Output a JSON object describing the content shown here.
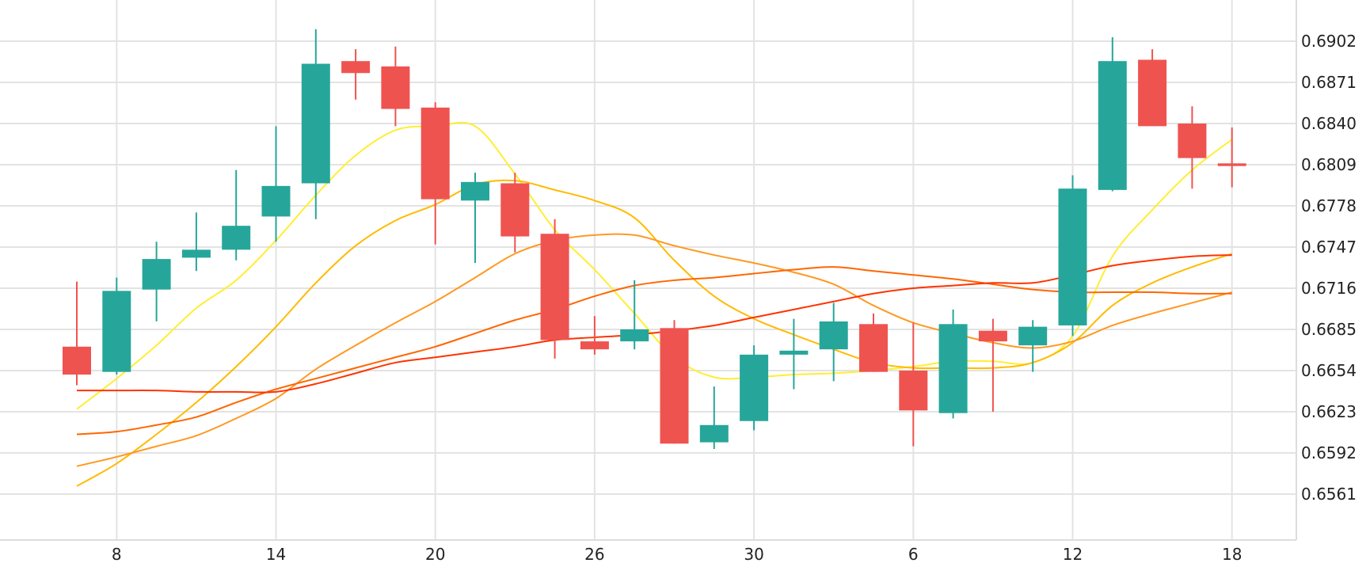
{
  "chart_data": {
    "type": "candlestick",
    "x_ticks": [
      {
        "label": "8",
        "index": 1
      },
      {
        "label": "14",
        "index": 5
      },
      {
        "label": "20",
        "index": 9
      },
      {
        "label": "26",
        "index": 13
      },
      {
        "label": "30",
        "index": 17
      },
      {
        "label": "6",
        "index": 21
      },
      {
        "label": "12",
        "index": 25
      },
      {
        "label": "18",
        "index": 29
      }
    ],
    "y_ticks": [
      "0.6561",
      "0.6592",
      "0.6623",
      "0.6654",
      "0.6685",
      "0.6716",
      "0.6747",
      "0.6778",
      "0.6809",
      "0.6840",
      "0.6871",
      "0.6902"
    ],
    "ylim": [
      0.653,
      0.6933
    ],
    "grid": true,
    "up_color": "#26a69a",
    "down_color": "#ef5350",
    "candles": [
      {
        "o": 0.6672,
        "h": 0.6721,
        "l": 0.6643,
        "c": 0.6651
      },
      {
        "o": 0.6653,
        "h": 0.6724,
        "l": 0.6651,
        "c": 0.6714
      },
      {
        "o": 0.6715,
        "h": 0.6751,
        "l": 0.6691,
        "c": 0.6738
      },
      {
        "o": 0.6739,
        "h": 0.6773,
        "l": 0.6729,
        "c": 0.6745
      },
      {
        "o": 0.6745,
        "h": 0.6805,
        "l": 0.6737,
        "c": 0.6763
      },
      {
        "o": 0.677,
        "h": 0.6838,
        "l": 0.6751,
        "c": 0.6793
      },
      {
        "o": 0.6795,
        "h": 0.6911,
        "l": 0.6768,
        "c": 0.6885
      },
      {
        "o": 0.6887,
        "h": 0.6896,
        "l": 0.6858,
        "c": 0.6878
      },
      {
        "o": 0.6883,
        "h": 0.6898,
        "l": 0.6838,
        "c": 0.6851
      },
      {
        "o": 0.6852,
        "h": 0.6856,
        "l": 0.6749,
        "c": 0.6783
      },
      {
        "o": 0.6782,
        "h": 0.6803,
        "l": 0.6735,
        "c": 0.6796
      },
      {
        "o": 0.6795,
        "h": 0.6803,
        "l": 0.6743,
        "c": 0.6755
      },
      {
        "o": 0.6757,
        "h": 0.6768,
        "l": 0.6663,
        "c": 0.6677
      },
      {
        "o": 0.6676,
        "h": 0.6695,
        "l": 0.6666,
        "c": 0.667
      },
      {
        "o": 0.6676,
        "h": 0.6722,
        "l": 0.667,
        "c": 0.6685
      },
      {
        "o": 0.6686,
        "h": 0.6692,
        "l": 0.6599,
        "c": 0.6599
      },
      {
        "o": 0.66,
        "h": 0.6642,
        "l": 0.6595,
        "c": 0.6613
      },
      {
        "o": 0.6616,
        "h": 0.6673,
        "l": 0.6609,
        "c": 0.6666
      },
      {
        "o": 0.6666,
        "h": 0.6693,
        "l": 0.664,
        "c": 0.6669
      },
      {
        "o": 0.667,
        "h": 0.6705,
        "l": 0.6646,
        "c": 0.6691
      },
      {
        "o": 0.6689,
        "h": 0.6697,
        "l": 0.6653,
        "c": 0.6653
      },
      {
        "o": 0.6654,
        "h": 0.669,
        "l": 0.6597,
        "c": 0.6624
      },
      {
        "o": 0.6622,
        "h": 0.67,
        "l": 0.6618,
        "c": 0.6689
      },
      {
        "o": 0.6684,
        "h": 0.6693,
        "l": 0.6623,
        "c": 0.6676
      },
      {
        "o": 0.6673,
        "h": 0.6692,
        "l": 0.6653,
        "c": 0.6687
      },
      {
        "o": 0.6688,
        "h": 0.6801,
        "l": 0.668,
        "c": 0.6791
      },
      {
        "o": 0.679,
        "h": 0.6905,
        "l": 0.6789,
        "c": 0.6887
      },
      {
        "o": 0.6888,
        "h": 0.6896,
        "l": 0.6839,
        "c": 0.6838
      },
      {
        "o": 0.684,
        "h": 0.6853,
        "l": 0.6791,
        "c": 0.6814
      },
      {
        "o": 0.681,
        "h": 0.6837,
        "l": 0.6792,
        "c": 0.6808
      }
    ],
    "series": [
      {
        "color": "#ffee33",
        "values": [
          0.6625,
          0.6648,
          0.6673,
          0.6701,
          0.6722,
          0.6752,
          0.6786,
          0.6816,
          0.6835,
          0.6838,
          0.6838,
          0.6802,
          0.676,
          0.673,
          0.6697,
          0.6664,
          0.6649,
          0.6649,
          0.6651,
          0.6652,
          0.6654,
          0.6657,
          0.6661,
          0.6661,
          0.666,
          0.668,
          0.674,
          0.6775,
          0.6805,
          0.6828
        ]
      },
      {
        "color": "#ffbb00",
        "values": [
          0.6567,
          0.6584,
          0.6606,
          0.663,
          0.6657,
          0.6687,
          0.672,
          0.6748,
          0.6767,
          0.6779,
          0.6794,
          0.6797,
          0.679,
          0.6782,
          0.6769,
          0.6737,
          0.671,
          0.6693,
          0.6681,
          0.667,
          0.666,
          0.6656,
          0.6656,
          0.6656,
          0.666,
          0.6675,
          0.6703,
          0.672,
          0.6732,
          0.6742
        ]
      },
      {
        "color": "#ff9922",
        "values": [
          0.6582,
          0.6589,
          0.6597,
          0.6605,
          0.6618,
          0.6633,
          0.6655,
          0.6673,
          0.669,
          0.6706,
          0.6724,
          0.6742,
          0.6752,
          0.6756,
          0.6756,
          0.6748,
          0.6741,
          0.6735,
          0.6728,
          0.6719,
          0.6703,
          0.669,
          0.6682,
          0.6675,
          0.6671,
          0.6676,
          0.6688,
          0.6697,
          0.6705,
          0.6713
        ]
      },
      {
        "color": "#ff6600",
        "values": [
          0.6606,
          0.6608,
          0.6613,
          0.6619,
          0.663,
          0.664,
          0.6648,
          0.6656,
          0.6664,
          0.6672,
          0.6682,
          0.6692,
          0.67,
          0.671,
          0.6718,
          0.6722,
          0.6724,
          0.6727,
          0.673,
          0.6732,
          0.6729,
          0.6726,
          0.6723,
          0.6719,
          0.6715,
          0.6713,
          0.6713,
          0.6713,
          0.6712,
          0.6712
        ]
      },
      {
        "color": "#ff3300",
        "values": [
          0.6639,
          0.6639,
          0.6639,
          0.6638,
          0.6638,
          0.6638,
          0.6644,
          0.6652,
          0.666,
          0.6664,
          0.6668,
          0.6672,
          0.6677,
          0.6679,
          0.6681,
          0.6684,
          0.6688,
          0.6694,
          0.67,
          0.6706,
          0.6712,
          0.6716,
          0.6718,
          0.672,
          0.672,
          0.6726,
          0.6733,
          0.6737,
          0.674,
          0.6741
        ]
      }
    ]
  }
}
